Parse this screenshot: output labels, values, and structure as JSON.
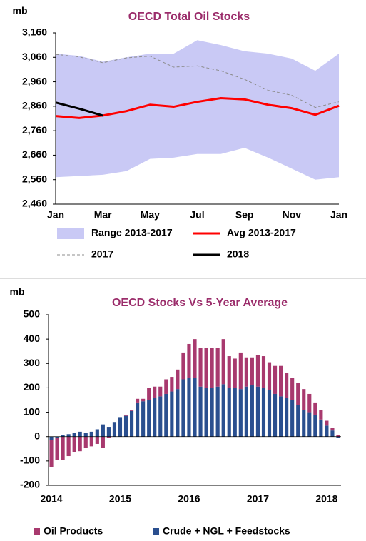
{
  "chart_data": [
    {
      "type": "line",
      "title": "OECD Total Oil Stocks",
      "y_label": "mb",
      "categories": [
        "Jan",
        null,
        "Mar",
        null,
        "May",
        null,
        "Jul",
        null,
        "Sep",
        null,
        "Nov",
        null,
        "Jan"
      ],
      "ylim": [
        2460,
        3160
      ],
      "yticks": [
        {
          "value": 2460,
          "label": "2,460"
        },
        {
          "value": 2560,
          "label": "2,560"
        },
        {
          "value": 2660,
          "label": "2,660"
        },
        {
          "value": 2760,
          "label": "2,760"
        },
        {
          "value": 2860,
          "label": "2,860"
        },
        {
          "value": 2960,
          "label": "2,960"
        },
        {
          "value": 3060,
          "label": "3,060"
        },
        {
          "value": 3160,
          "label": "3,160"
        }
      ],
      "grid": false,
      "series": [
        {
          "name": "Range 2013-2017",
          "color": "#c9c9f5",
          "high": [
            3075,
            3066,
            3042,
            3060,
            3075,
            3075,
            3130,
            3110,
            3085,
            3075,
            3055,
            3005,
            3075
          ],
          "low": [
            2570,
            2575,
            2580,
            2595,
            2645,
            2650,
            2665,
            2665,
            2690,
            2650,
            2605,
            2560,
            2570
          ]
        },
        {
          "name": "Avg 2013-2017",
          "color": "#ff0000",
          "values": [
            2820,
            2812,
            2822,
            2840,
            2866,
            2858,
            2878,
            2893,
            2888,
            2866,
            2852,
            2825,
            2862
          ]
        },
        {
          "name": "2017",
          "color": "#8c8c8c",
          "dashed": true,
          "values": [
            3072,
            3062,
            3038,
            3058,
            3065,
            3020,
            3025,
            3005,
            2970,
            2925,
            2905,
            2855,
            2878
          ]
        },
        {
          "name": "2018",
          "color": "#000000",
          "values": [
            2875,
            2850,
            2822,
            null,
            null,
            null,
            null,
            null,
            null,
            null,
            null,
            null,
            null
          ]
        }
      ]
    },
    {
      "type": "bar",
      "stacked": true,
      "title": "OECD Stocks Vs 5-Year Average",
      "y_label": "mb",
      "categories": [
        "2014",
        null,
        null,
        null,
        null,
        null,
        null,
        null,
        null,
        null,
        null,
        null,
        "2015",
        null,
        null,
        null,
        null,
        null,
        null,
        null,
        null,
        null,
        null,
        null,
        "2016",
        null,
        null,
        null,
        null,
        null,
        null,
        null,
        null,
        null,
        null,
        null,
        "2017",
        null,
        null,
        null,
        null,
        null,
        null,
        null,
        null,
        null,
        null,
        null,
        "2018",
        null,
        null
      ],
      "ylim": [
        -200,
        500
      ],
      "yticks": [
        -200,
        -100,
        0,
        100,
        200,
        300,
        400,
        500
      ],
      "grid": false,
      "series": [
        {
          "name": "Oil Products",
          "color": "#a8396e",
          "values": [
            -110,
            -90,
            -95,
            -80,
            -65,
            -60,
            -45,
            -40,
            -30,
            -45,
            -5,
            0,
            0,
            5,
            5,
            15,
            10,
            50,
            45,
            40,
            60,
            60,
            80,
            110,
            140,
            160,
            160,
            165,
            165,
            160,
            185,
            130,
            120,
            150,
            120,
            115,
            130,
            130,
            115,
            115,
            125,
            100,
            90,
            90,
            85,
            75,
            50,
            40,
            20,
            10,
            5
          ]
        },
        {
          "name": "Crude + NGL + Feedstocks",
          "color": "#2a4f8f",
          "values": [
            -15,
            -5,
            5,
            10,
            15,
            20,
            15,
            20,
            30,
            50,
            40,
            60,
            80,
            85,
            105,
            140,
            145,
            150,
            160,
            165,
            175,
            185,
            195,
            235,
            240,
            240,
            205,
            200,
            200,
            205,
            215,
            200,
            200,
            195,
            205,
            210,
            205,
            200,
            190,
            175,
            165,
            160,
            150,
            130,
            110,
            100,
            90,
            70,
            45,
            25,
            -5
          ]
        }
      ]
    }
  ]
}
